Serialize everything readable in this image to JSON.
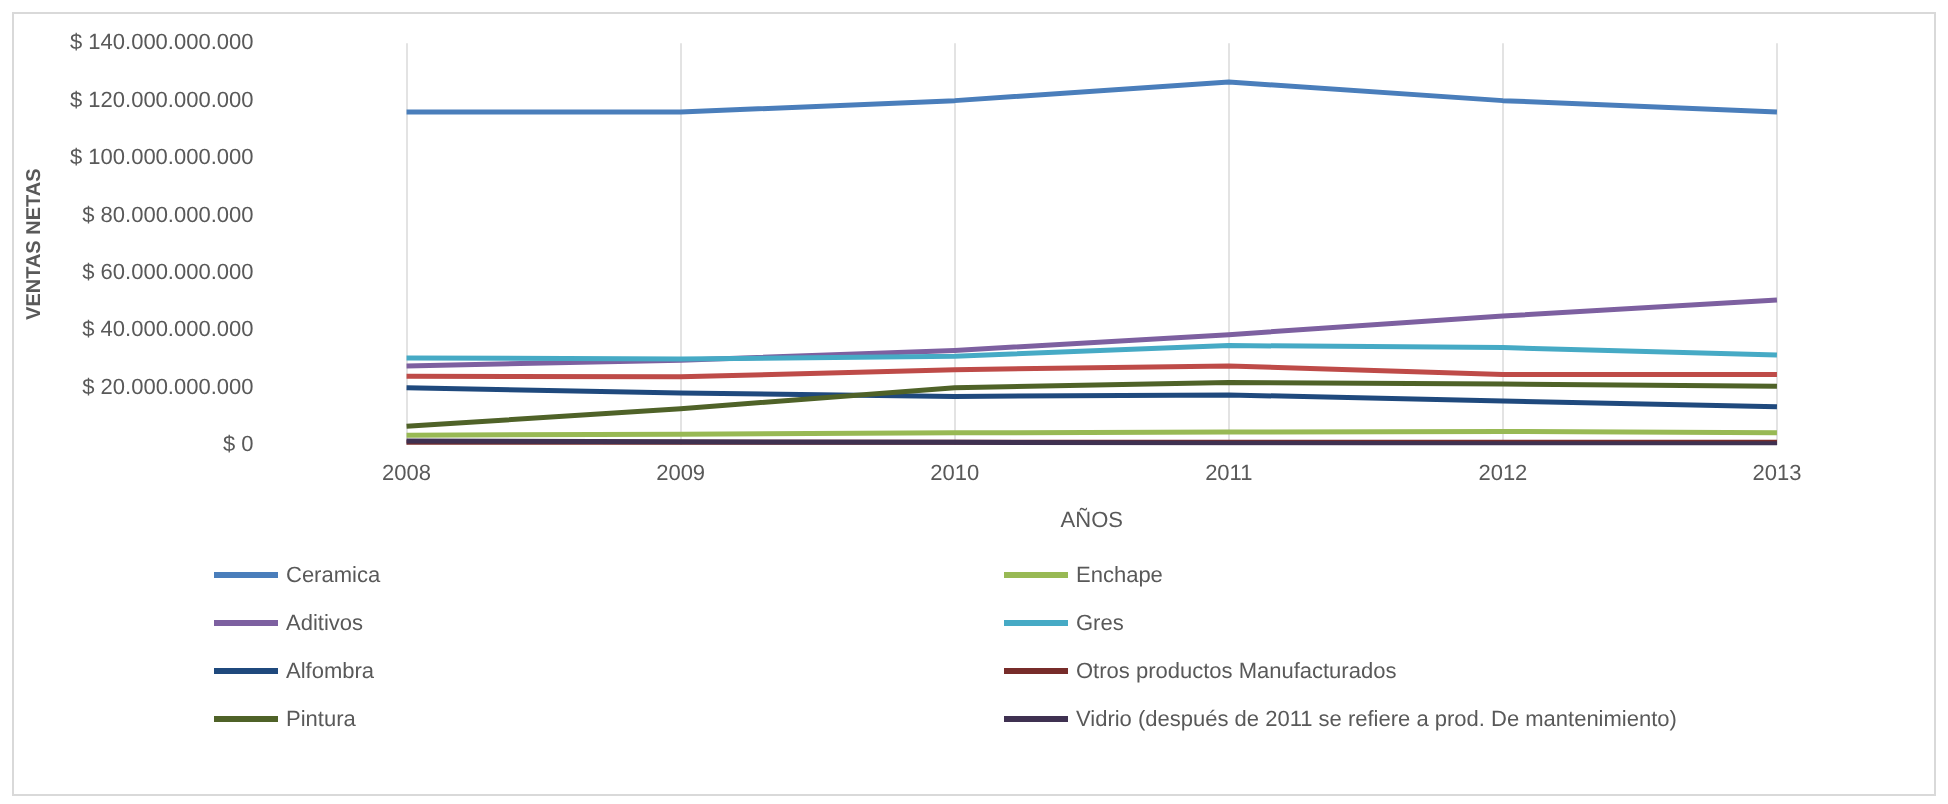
{
  "chart_data": {
    "type": "line",
    "xlabel": "AÑOS",
    "ylabel": "VENTAS NETAS",
    "categories": [
      "2008",
      "2009",
      "2010",
      "2011",
      "2012",
      "2013"
    ],
    "ylim": [
      0,
      140000000000
    ],
    "yticks": [
      {
        "value": 0,
        "label": "$ 0"
      },
      {
        "value": 20000000000,
        "label": "$ 20.000.000.000"
      },
      {
        "value": 40000000000,
        "label": "$ 40.000.000.000"
      },
      {
        "value": 60000000000,
        "label": "$ 60.000.000.000"
      },
      {
        "value": 80000000000,
        "label": "$ 80.000.000.000"
      },
      {
        "value": 100000000000,
        "label": "$ 100.000.000.000"
      },
      {
        "value": 120000000000,
        "label": "$ 120.000.000.000"
      },
      {
        "value": 140000000000,
        "label": "$ 140.000.000.000"
      }
    ],
    "grid": "x",
    "legend": "bottom",
    "marker": "none",
    "line_style": "solid",
    "series": [
      {
        "name": "Ceramica",
        "color": "#4a7ebb",
        "values": [
          116000000000,
          116000000000,
          120000000000,
          126500000000,
          120000000000,
          116000000000
        ]
      },
      {
        "color": "#be4b48",
        "values": [
          24000000000,
          23800000000,
          26300000000,
          27600000000,
          24600000000,
          24600000000
        ]
      },
      {
        "name": "Enchape",
        "color": "#98b954",
        "values": [
          3500000000,
          3800000000,
          4300000000,
          4600000000,
          4800000000,
          4300000000
        ]
      },
      {
        "name": "Aditivos",
        "color": "#7d60a0",
        "values": [
          27600000000,
          29600000000,
          33000000000,
          38500000000,
          45000000000,
          50600000000
        ]
      },
      {
        "name": "Gres",
        "color": "#46aac5",
        "values": [
          30400000000,
          30000000000,
          31000000000,
          34700000000,
          34000000000,
          31400000000
        ]
      },
      {
        "color": "#f69240",
        "values": [
          null,
          null,
          null,
          null,
          null,
          null
        ]
      },
      {
        "name": "Alfombra",
        "color": "#1f497d",
        "values": [
          20000000000,
          18200000000,
          17000000000,
          17500000000,
          15400000000,
          13400000000
        ]
      },
      {
        "name": "Otros productos Manufacturados",
        "color": "#772c2a",
        "values": [
          1000000000,
          1000000000,
          1000000000,
          1000000000,
          1000000000,
          1000000000
        ]
      },
      {
        "name": "Pintura",
        "color": "#4f6228",
        "values": [
          6600000000,
          12700000000,
          20000000000,
          21800000000,
          21300000000,
          20500000000
        ]
      },
      {
        "name": "Vidrio (después de 2011 se refiere a prod. De mantenimiento)",
        "color": "#3f3151",
        "values": [
          1500000000,
          1200000000,
          1000000000,
          700000000,
          500000000,
          500000000
        ]
      }
    ]
  }
}
